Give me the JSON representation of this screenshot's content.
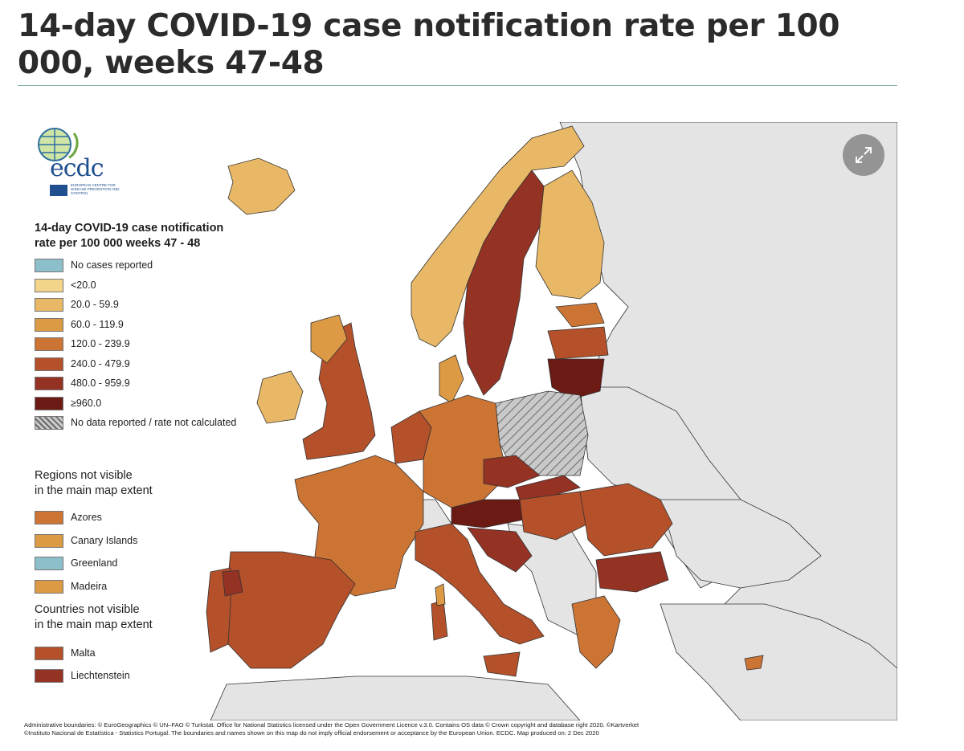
{
  "headline": "14-day COVID-19 case notification rate per 100 000, weeks 47-48",
  "logo": {
    "name": "ecdc",
    "subtitle": "EUROPEAN CENTRE FOR DISEASE PREVENTION AND CONTROL",
    "icon": "globe-icon"
  },
  "expand_icon": "expand-icon",
  "legend": {
    "title_line1": "14-day COVID-19 case notification",
    "title_line2": "rate per 100 000 weeks 47 - 48",
    "items": [
      {
        "label": "No cases reported",
        "color": "#8dbfcb"
      },
      {
        "label": "<20.0",
        "color": "#f2d58a"
      },
      {
        "label": "20.0 - 59.9",
        "color": "#e8b866"
      },
      {
        "label": "60.0 - 119.9",
        "color": "#dc9a45"
      },
      {
        "label": "120.0 - 239.9",
        "color": "#cc7434"
      },
      {
        "label": "240.0 - 479.9",
        "color": "#b4502a"
      },
      {
        "label": "480.0 - 959.9",
        "color": "#943224"
      },
      {
        "label": "≥960.0",
        "color": "#6b1a14"
      },
      {
        "label": "No data reported / rate not calculated",
        "color": "hatched"
      }
    ]
  },
  "regions_heading_line1": "Regions not visible",
  "regions_heading_line2": "in the main map extent",
  "regions": [
    {
      "label": "Azores",
      "color": "#cc7434"
    },
    {
      "label": "Canary Islands",
      "color": "#dc9a45"
    },
    {
      "label": "Greenland",
      "color": "#8dbfcb"
    },
    {
      "label": "Madeira",
      "color": "#dc9a45"
    }
  ],
  "countries_heading_line1": "Countries not visible",
  "countries_heading_line2": "in the main map extent",
  "countries": [
    {
      "label": "Malta",
      "color": "#b4502a"
    },
    {
      "label": "Liechtenstein",
      "color": "#943224"
    }
  ],
  "footer_line1": "Administrative boundaries: © EuroGeographics © UN–FAO © Turkstat. Office for National Statistics licensed under the Open Government Licence v.3.0. Contains OS data © Crown copyright and database right 2020. ©Kartverket",
  "footer_line2": "©Instituto Nacional de Estatística - Statistics Portugal. The boundaries and names shown on this map do not imply official endorsement or acceptance by the European Union. ECDC. Map produced on: 2 Dec 2020"
}
